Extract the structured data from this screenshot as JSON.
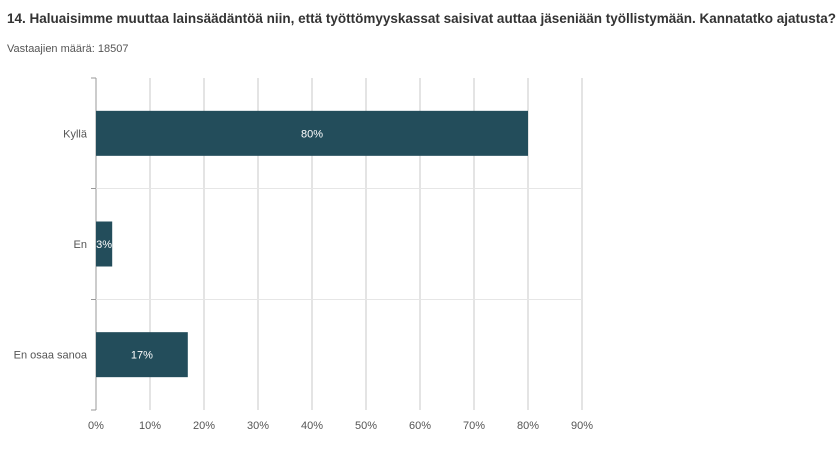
{
  "title": "14. Haluaisimme muuttaa lainsäädäntöä niin, että työttömyyskassat saisivat auttaa jäseniään työllistymään. Kannatatko ajatusta?",
  "respondents": {
    "label": "Vastaajien määrä:",
    "count": "18507"
  },
  "colors": {
    "bar": "#234d5b",
    "bar_label": "#ffffff",
    "grid": "#c8c8c8",
    "axis_text": "#555555"
  },
  "chart_data": {
    "type": "bar",
    "orientation": "horizontal",
    "categories": [
      "Kyllä",
      "En",
      "En osaa sanoa"
    ],
    "values": [
      80,
      3,
      17
    ],
    "value_labels": [
      "80%",
      "3%",
      "17%"
    ],
    "xlim": [
      0,
      90
    ],
    "xticks": [
      0,
      10,
      20,
      30,
      40,
      50,
      60,
      70,
      80,
      90
    ],
    "xtick_labels": [
      "0%",
      "10%",
      "20%",
      "30%",
      "40%",
      "50%",
      "60%",
      "70%",
      "80%",
      "90%"
    ],
    "grid": true
  }
}
